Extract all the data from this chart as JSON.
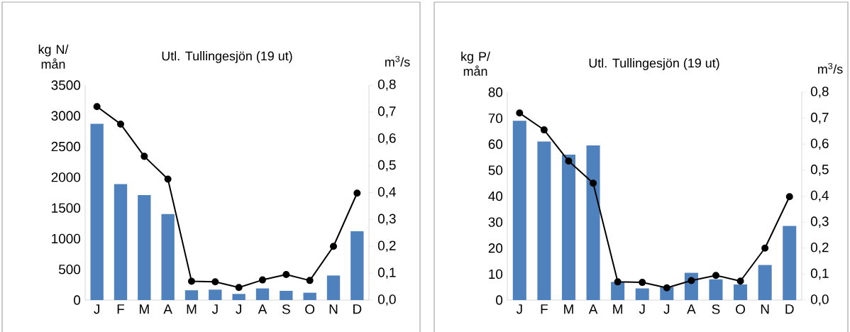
{
  "chart_data": [
    {
      "type": "bar",
      "title": "Utl. Tullingesjön (19 ut)",
      "ylabel": "kg N/ mån",
      "y2label": "m$^{3}$/s",
      "categories": [
        "J",
        "F",
        "M",
        "A",
        "M",
        "J",
        "J",
        "A",
        "S",
        "O",
        "N",
        "D"
      ],
      "series": [
        {
          "color": "#4f81bd",
          "values": [
            2870,
            1890,
            1710,
            1400,
            160,
            170,
            100,
            190,
            150,
            120,
            400,
            1120
          ]
        },
        {
          "type": "line",
          "axis": "y2",
          "color": "#000000",
          "marker": "circle",
          "values": [
            0.72,
            0.655,
            0.535,
            0.45,
            0.07,
            0.068,
            0.047,
            0.075,
            0.095,
            0.073,
            0.2,
            0.398
          ]
        }
      ],
      "ylim": [
        0,
        3500
      ],
      "yticks": [
        0,
        500,
        1000,
        1500,
        2000,
        2500,
        3000,
        3500
      ],
      "y2lim": [
        0,
        0.8
      ],
      "y2ticks": [
        {
          "value": 0,
          "label": "0,0"
        },
        {
          "value": 0.1,
          "label": "0,1"
        },
        {
          "value": 0.2,
          "label": "0,2"
        },
        {
          "value": 0.3,
          "label": "0,3"
        },
        {
          "value": 0.4,
          "label": "0,4"
        },
        {
          "value": 0.5,
          "label": "0,5"
        },
        {
          "value": 0.6,
          "label": "0,6"
        },
        {
          "value": 0.7,
          "label": "0,7"
        },
        {
          "value": 0.8,
          "label": "0,8"
        }
      ],
      "grid": false
    },
    {
      "type": "bar",
      "title": "Utl. Tullingesjön (19 ut)",
      "ylabel": "kg P/ mån",
      "y2label": "m$^{3}$/s",
      "categories": [
        "J",
        "F",
        "M",
        "A",
        "M",
        "J",
        "J",
        "A",
        "S",
        "O",
        "N",
        "D"
      ],
      "series": [
        {
          "color": "#4f81bd",
          "values": [
            69,
            61,
            56,
            59.5,
            7,
            4.5,
            5,
            10.5,
            8,
            6,
            13.5,
            28.5
          ]
        },
        {
          "type": "line",
          "axis": "y2",
          "color": "#000000",
          "marker": "circle",
          "values": [
            0.72,
            0.655,
            0.535,
            0.45,
            0.07,
            0.068,
            0.047,
            0.075,
            0.095,
            0.073,
            0.2,
            0.398
          ]
        }
      ],
      "ylim": [
        0,
        80
      ],
      "yticks": [
        0,
        10,
        20,
        30,
        40,
        50,
        60,
        70,
        80
      ],
      "y2lim": [
        0,
        0.8
      ],
      "y2ticks": [
        {
          "value": 0,
          "label": "0,0"
        },
        {
          "value": 0.1,
          "label": "0,1"
        },
        {
          "value": 0.2,
          "label": "0,2"
        },
        {
          "value": 0.3,
          "label": "0,3"
        },
        {
          "value": 0.4,
          "label": "0,4"
        },
        {
          "value": 0.5,
          "label": "0,5"
        },
        {
          "value": 0.6,
          "label": "0,6"
        },
        {
          "value": 0.7,
          "label": "0,7"
        },
        {
          "value": 0.8,
          "label": "0,8"
        }
      ],
      "grid": false
    }
  ]
}
